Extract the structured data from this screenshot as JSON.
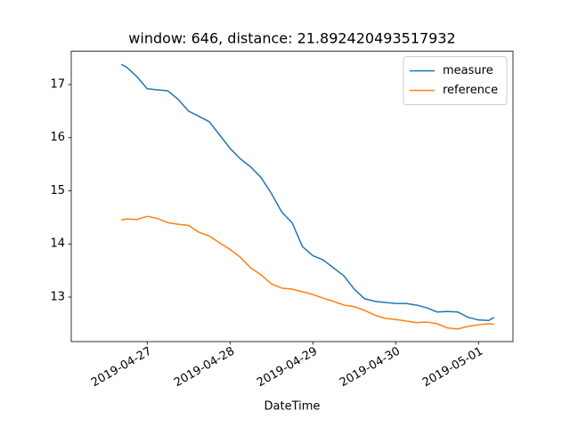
{
  "chart_data": {
    "type": "line",
    "title": "window: 646, distance: 21.892420493517932",
    "xlabel": "DateTime",
    "x": [
      "2019-04-26T16:30",
      "2019-04-26T18:00",
      "2019-04-26T21:00",
      "2019-04-27T00:00",
      "2019-04-27T03:00",
      "2019-04-27T06:00",
      "2019-04-27T09:00",
      "2019-04-27T12:00",
      "2019-04-27T15:00",
      "2019-04-27T18:00",
      "2019-04-27T21:00",
      "2019-04-28T00:00",
      "2019-04-28T03:00",
      "2019-04-28T06:00",
      "2019-04-28T09:00",
      "2019-04-28T12:00",
      "2019-04-28T15:00",
      "2019-04-28T18:00",
      "2019-04-28T21:00",
      "2019-04-29T00:00",
      "2019-04-29T03:00",
      "2019-04-29T06:00",
      "2019-04-29T09:00",
      "2019-04-29T12:00",
      "2019-04-29T15:00",
      "2019-04-29T18:00",
      "2019-04-29T21:00",
      "2019-04-30T00:00",
      "2019-04-30T03:00",
      "2019-04-30T06:00",
      "2019-04-30T09:00",
      "2019-04-30T12:00",
      "2019-04-30T15:00",
      "2019-04-30T18:00",
      "2019-04-30T21:00",
      "2019-05-01T00:00",
      "2019-05-01T03:00",
      "2019-05-01T04:30"
    ],
    "series": [
      {
        "name": "measure",
        "color": "#1f77b4",
        "values": [
          17.38,
          17.33,
          17.15,
          16.92,
          16.9,
          16.88,
          16.72,
          16.5,
          16.4,
          16.3,
          16.05,
          15.8,
          15.6,
          15.45,
          15.25,
          14.95,
          14.6,
          14.4,
          13.95,
          13.78,
          13.7,
          13.55,
          13.4,
          13.15,
          12.97,
          12.92,
          12.9,
          12.88,
          12.88,
          12.85,
          12.8,
          12.72,
          12.73,
          12.72,
          12.62,
          12.57,
          12.56,
          12.62
        ]
      },
      {
        "name": "reference",
        "color": "#ff7f0e",
        "values": [
          14.45,
          14.47,
          14.46,
          14.52,
          14.48,
          14.4,
          14.37,
          14.35,
          14.22,
          14.15,
          14.02,
          13.9,
          13.75,
          13.55,
          13.42,
          13.25,
          13.17,
          13.15,
          13.1,
          13.05,
          12.98,
          12.92,
          12.85,
          12.82,
          12.75,
          12.66,
          12.6,
          12.58,
          12.55,
          12.52,
          12.53,
          12.5,
          12.42,
          12.4,
          12.45,
          12.48,
          12.5,
          12.49
        ]
      }
    ],
    "xlim": [
      "2019-04-26T02:00",
      "2019-05-01T10:00"
    ],
    "xticks": [
      "2019-04-27",
      "2019-04-28",
      "2019-04-29",
      "2019-04-30",
      "2019-05-01"
    ],
    "ylim": [
      12.163,
      17.626
    ],
    "yticks": [
      13,
      14,
      15,
      16,
      17
    ],
    "legend": "upper right"
  }
}
